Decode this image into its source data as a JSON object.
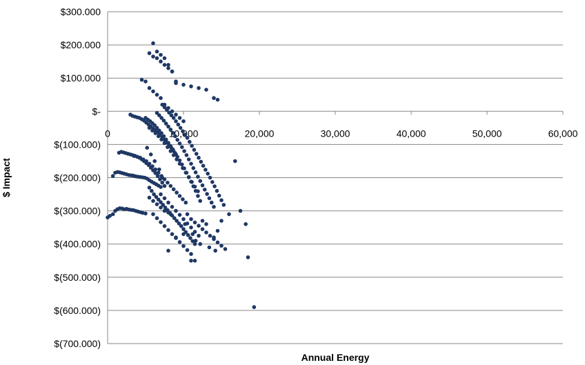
{
  "chart_data": {
    "type": "scatter",
    "title": "",
    "xlabel": "Annual Energy",
    "ylabel": "$ Impact",
    "xlim": [
      0,
      60000
    ],
    "ylim": [
      -700000,
      300000
    ],
    "x_ticks": [
      0,
      10000,
      20000,
      30000,
      40000,
      50000,
      60000
    ],
    "x_tick_labels": [
      "0",
      "10,000",
      "20,000",
      "30,000",
      "40,000",
      "50,000",
      "60,000"
    ],
    "y_ticks": [
      300000,
      200000,
      100000,
      0,
      -100000,
      -200000,
      -300000,
      -400000,
      -500000,
      -600000,
      -700000
    ],
    "y_tick_labels": [
      "$300.000",
      "$200.000",
      "$100.000",
      "$-",
      "$(100.000)",
      "$(200.000)",
      "$(300.000)",
      "$(400.000)",
      "$(500.000)",
      "$(600.000)",
      "$(700.000)"
    ],
    "grid": true,
    "legend": "none",
    "marker_color": "#1f3864",
    "series": [
      {
        "x": [
          0,
          300,
          700,
          1000,
          1300,
          1600,
          1900,
          2200,
          2500,
          2800,
          3100,
          3400,
          3700,
          4000,
          4300,
          4600,
          5000,
          700,
          1000,
          1300,
          1600,
          1900,
          2200,
          2500,
          2800,
          3100,
          3400,
          3700,
          4000,
          4300,
          4600,
          4900,
          5200,
          5500,
          5800,
          6100,
          6400,
          6700,
          7000,
          1500,
          1800,
          2100,
          2400,
          2700,
          3000,
          3300,
          3600,
          3900,
          4200,
          4500,
          4800,
          5100,
          5400,
          5700,
          6000,
          6300,
          6600,
          6900,
          7200,
          7500,
          3000,
          3300,
          3600,
          3900,
          4200,
          4500,
          4800,
          5100,
          5400,
          5700,
          6000,
          6300,
          6600,
          6900,
          7200,
          7500,
          7800,
          8100,
          8400,
          8700,
          9000,
          3500,
          3900,
          4300,
          4700,
          5100,
          5500,
          5900,
          6300,
          6700,
          7100,
          7500,
          7900,
          8300,
          8700,
          9100,
          9500,
          9900,
          10300,
          5000,
          5300,
          5600,
          5900,
          6200,
          6500,
          6800,
          7100,
          7400,
          7700,
          8000,
          8300,
          8600,
          8900,
          9200,
          9500,
          9800,
          10100,
          10400,
          10700,
          11000,
          11300,
          11600,
          11900,
          12200,
          6500,
          6800,
          7100,
          7400,
          7700,
          8000,
          8300,
          8600,
          8900,
          9200,
          9500,
          9800,
          10100,
          10400,
          10700,
          11000,
          11300,
          11600,
          11900,
          12200,
          12500,
          12800,
          13100,
          13400,
          13700,
          14000,
          7200,
          7500,
          7800,
          8100,
          8400,
          8700,
          9000,
          9300,
          9600,
          9900,
          10200,
          10500,
          10800,
          11100,
          11400,
          11700,
          12000,
          12300,
          12600,
          12900,
          13200,
          13500,
          13800,
          14100,
          14400,
          14700,
          15000,
          15300,
          5500,
          5800,
          6100,
          6400,
          6700,
          7000,
          7300,
          7600,
          7900,
          8200,
          8500,
          8800,
          9100,
          9400,
          9700,
          10000,
          10300,
          10600,
          10900,
          11200,
          5500,
          5900,
          6300,
          6700,
          7100,
          7500,
          7900,
          8300,
          8700,
          9100,
          9500,
          9900,
          10300,
          10700,
          11100,
          11500,
          11900,
          4500,
          5000,
          5500,
          6000,
          6500,
          7000,
          7500,
          8000,
          8500,
          9000,
          9500,
          10000,
          5500,
          6000,
          6500,
          7000,
          7500,
          8000,
          8500,
          6000,
          6500,
          7000,
          7500,
          8000,
          8500,
          9000,
          5500,
          6000,
          6500,
          7000,
          7500,
          8000,
          8300,
          9000,
          10000,
          11000,
          12000,
          13000,
          14000,
          14500,
          5200,
          5700,
          6200,
          6800,
          7200,
          10200,
          11200,
          11600,
          12200,
          13400,
          14200,
          10500,
          11000,
          11500,
          12000,
          12500,
          13000,
          13500,
          14000,
          14500,
          15000,
          15500,
          7000,
          7500,
          8000,
          8500,
          9000,
          9500,
          10000,
          10500,
          11000,
          11500,
          12000,
          6000,
          6500,
          7000,
          7500,
          8000,
          8500,
          9000,
          9500,
          10000,
          10500,
          11000,
          11500,
          8000,
          9000,
          10000,
          11000,
          11500,
          12500,
          13000,
          14000,
          14500,
          15000,
          16000,
          16800,
          17500,
          18200,
          18500,
          19300
        ],
        "y": [
          -320000,
          -315000,
          -310000,
          -300000,
          -295000,
          -292000,
          -293000,
          -295000,
          -294000,
          -296000,
          -297000,
          -298000,
          -300000,
          -302000,
          -304000,
          -306000,
          -308000,
          -195000,
          -185000,
          -183000,
          -184000,
          -186000,
          -188000,
          -190000,
          -192000,
          -193000,
          -194000,
          -196000,
          -197000,
          -198000,
          -199000,
          -200000,
          -203000,
          -208000,
          -212000,
          -216000,
          -220000,
          -224000,
          -228000,
          -125000,
          -122000,
          -124000,
          -126000,
          -128000,
          -130000,
          -132000,
          -134000,
          -137000,
          -140000,
          -145000,
          -150000,
          -156000,
          -162000,
          -170000,
          -178000,
          -186000,
          -195000,
          -205000,
          -215000,
          -225000,
          -10000,
          -14000,
          -16000,
          -18000,
          -20000,
          -24000,
          -28000,
          -34000,
          -40000,
          -46000,
          -52000,
          -58000,
          -64000,
          -70000,
          -78000,
          -86000,
          -94000,
          -102000,
          -110000,
          -120000,
          -130000,
          -135000,
          -137000,
          -140000,
          -145000,
          -150000,
          -158000,
          -166000,
          -175000,
          -185000,
          -195000,
          -205000,
          -215000,
          -225000,
          -235000,
          -245000,
          -255000,
          -265000,
          -275000,
          -20000,
          -25000,
          -30000,
          -36000,
          -42000,
          -50000,
          -58000,
          -66000,
          -75000,
          -85000,
          -95000,
          -105000,
          -115000,
          -126000,
          -137000,
          -148000,
          -160000,
          -172000,
          -185000,
          -198000,
          -212000,
          -226000,
          -240000,
          -255000,
          -270000,
          -5000,
          -12000,
          -20000,
          -28000,
          -37000,
          -46000,
          -55000,
          -65000,
          -75000,
          -86000,
          -97000,
          -108000,
          -120000,
          -132000,
          -145000,
          -158000,
          -171000,
          -184000,
          -197000,
          -210000,
          -223000,
          -236000,
          -249000,
          -262000,
          -275000,
          -288000,
          20000,
          12000,
          4000,
          -4000,
          -12000,
          -20000,
          -30000,
          -40000,
          -50000,
          -60000,
          -70000,
          -80000,
          -92000,
          -104000,
          -116000,
          -128000,
          -140000,
          -152000,
          -164000,
          -176000,
          -188000,
          -200000,
          -213000,
          -226000,
          -240000,
          -254000,
          -268000,
          -282000,
          -230000,
          -240000,
          -250000,
          -258000,
          -266000,
          -274000,
          -282000,
          -290000,
          -298000,
          -306000,
          -314000,
          -322000,
          -330000,
          -338000,
          -346000,
          -355000,
          -364000,
          -373000,
          -382000,
          -391000,
          -50000,
          -58000,
          -66000,
          -75000,
          -85000,
          -96000,
          -108000,
          -120000,
          -132000,
          -145000,
          -158000,
          -171000,
          -185000,
          -199000,
          -213000,
          -227000,
          -241000,
          95000,
          90000,
          70000,
          60000,
          50000,
          40000,
          20000,
          10000,
          0,
          -10000,
          -20000,
          -30000,
          175000,
          165000,
          160000,
          150000,
          140000,
          130000,
          120000,
          205000,
          180000,
          170000,
          160000,
          140000,
          120000,
          90000,
          -260000,
          -270000,
          -280000,
          -290000,
          -300000,
          -305000,
          -310000,
          85000,
          80000,
          75000,
          70000,
          65000,
          40000,
          35000,
          -110000,
          -130000,
          -150000,
          -175000,
          -200000,
          -340000,
          -370000,
          -390000,
          -400000,
          -410000,
          -420000,
          -310000,
          -325000,
          -335000,
          -345000,
          -355000,
          -365000,
          -375000,
          -385000,
          -395000,
          -405000,
          -415000,
          -250000,
          -262000,
          -275000,
          -288000,
          -300000,
          -312000,
          -325000,
          -338000,
          -350000,
          -363000,
          -375000,
          -310000,
          -322000,
          -334000,
          -346000,
          -358000,
          -370000,
          -382000,
          -394000,
          -406000,
          -418000,
          -430000,
          -450000,
          -420000,
          -380000,
          -370000,
          -450000,
          -400000,
          -330000,
          -340000,
          -380000,
          -360000,
          -330000,
          -310000,
          -150000,
          -300000,
          -340000,
          -440000,
          -590000
        ]
      }
    ]
  }
}
